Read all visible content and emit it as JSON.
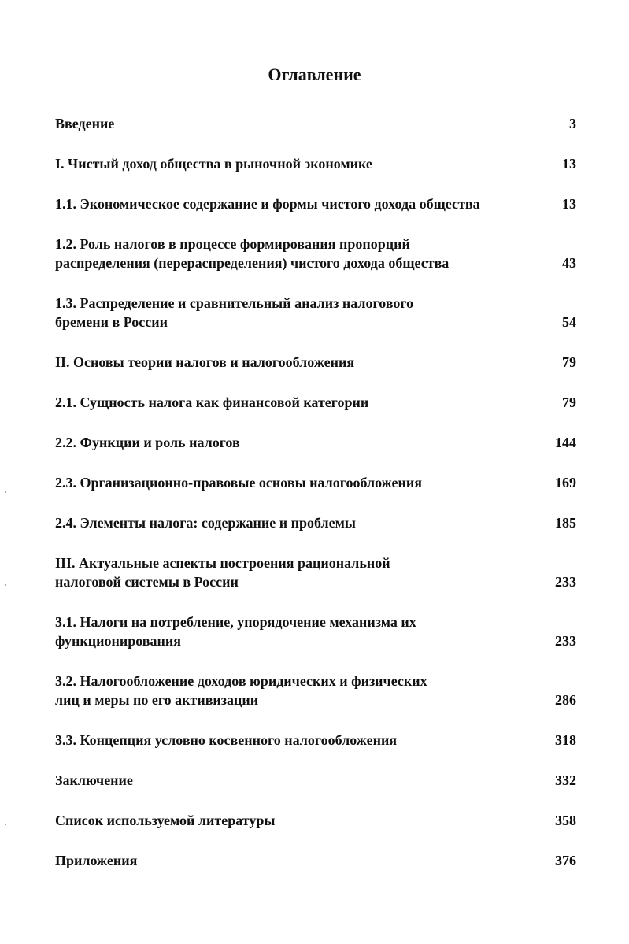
{
  "title": "Оглавление",
  "entries": [
    {
      "lines": [
        "Введение"
      ],
      "page": "3"
    },
    {
      "lines": [
        "I. Чистый доход общества в рыночной экономике"
      ],
      "page": "13"
    },
    {
      "lines": [
        "1.1. Экономическое содержание и формы чистого дохода общества"
      ],
      "page": "13"
    },
    {
      "lines": [
        "1.2. Роль налогов в процессе формирования пропорций",
        "распределения (перераспределения) чистого дохода общества"
      ],
      "page": "43"
    },
    {
      "lines": [
        "1.3. Распределение и сравнительный анализ налогового",
        "бремени в России"
      ],
      "page": "54"
    },
    {
      "lines": [
        "II. Основы теории налогов и налогообложения"
      ],
      "page": "79"
    },
    {
      "lines": [
        "2.1. Сущность налога как финансовой категории"
      ],
      "page": "79"
    },
    {
      "lines": [
        "2.2. Функции и роль налогов"
      ],
      "page": "144"
    },
    {
      "lines": [
        "2.3. Организационно-правовые основы налогообложения"
      ],
      "page": "169"
    },
    {
      "lines": [
        "2.4. Элементы налога: содержание и проблемы"
      ],
      "page": "185"
    },
    {
      "lines": [
        "III. Актуальные аспекты построения рациональной",
        "налоговой системы в России"
      ],
      "page": "233"
    },
    {
      "lines": [
        "3.1. Налоги на потребление, упорядочение механизма их",
        "функционирования"
      ],
      "page": "233"
    },
    {
      "lines": [
        "3.2. Налогообложение доходов юридических и физических",
        "лиц и меры по его активизации"
      ],
      "page": "286"
    },
    {
      "lines": [
        "3.3. Концепция условно косвенного налогообложения"
      ],
      "page": "318"
    },
    {
      "lines": [
        "Заключение"
      ],
      "page": "332"
    },
    {
      "lines": [
        "Список используемой литературы"
      ],
      "page": "358"
    },
    {
      "lines": [
        "Приложения"
      ],
      "page": "376"
    }
  ]
}
